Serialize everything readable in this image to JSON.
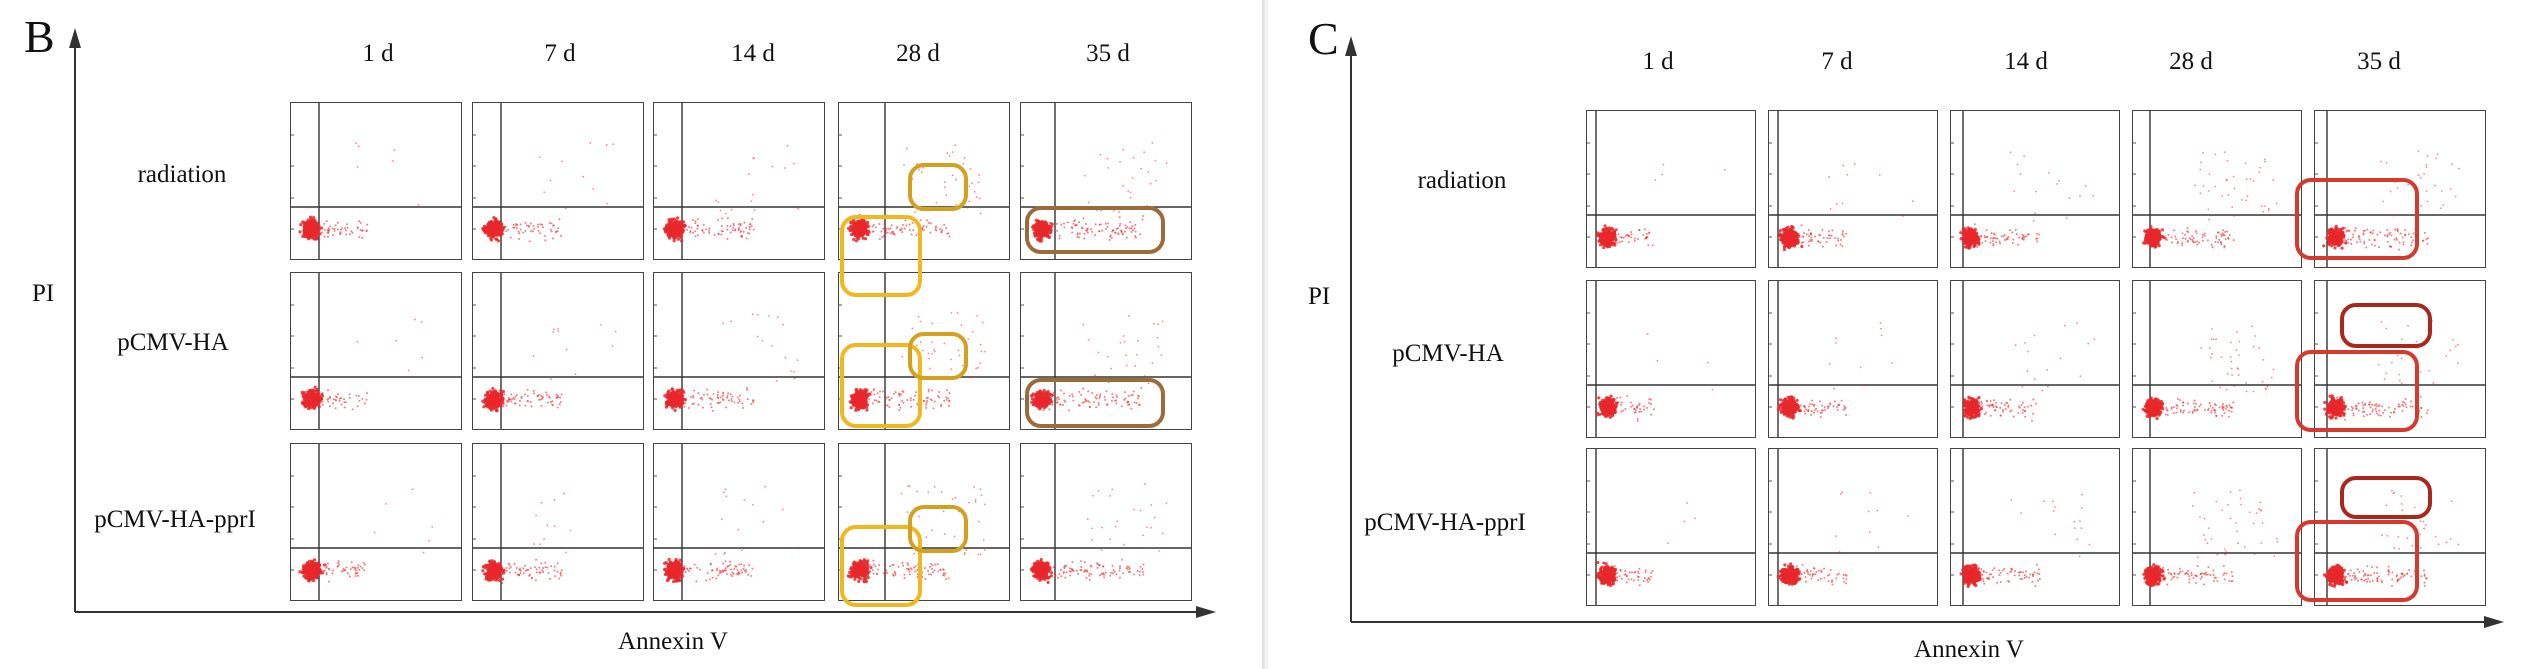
{
  "figure": {
    "panels": [
      {
        "id": "b",
        "letter": "B",
        "columns": [
          "1 d",
          "7 d",
          "14 d",
          "28 d",
          "35 d"
        ],
        "rows": [
          "radiation",
          "pCMV-HA",
          "pCMV-HA-pprI"
        ],
        "y_axis_title": "PI",
        "x_axis_title": "Annexin V"
      },
      {
        "id": "c",
        "letter": "C",
        "columns": [
          "1 d",
          "7 d",
          "14 d",
          "28 d",
          "35 d"
        ],
        "rows": [
          "radiation",
          "pCMV-HA",
          "pCMV-HA-pprI"
        ],
        "y_axis_title": "PI",
        "x_axis_title": "Annexin V"
      }
    ],
    "colors": {
      "dots": "#e8282c",
      "gate_lines": "#333333",
      "highlight_yellow": "#f0b820",
      "highlight_gold": "#d4a020",
      "highlight_brown": "#9c6b3c",
      "highlight_red": "#d63a2e",
      "highlight_darkred": "#a8281e"
    }
  }
}
